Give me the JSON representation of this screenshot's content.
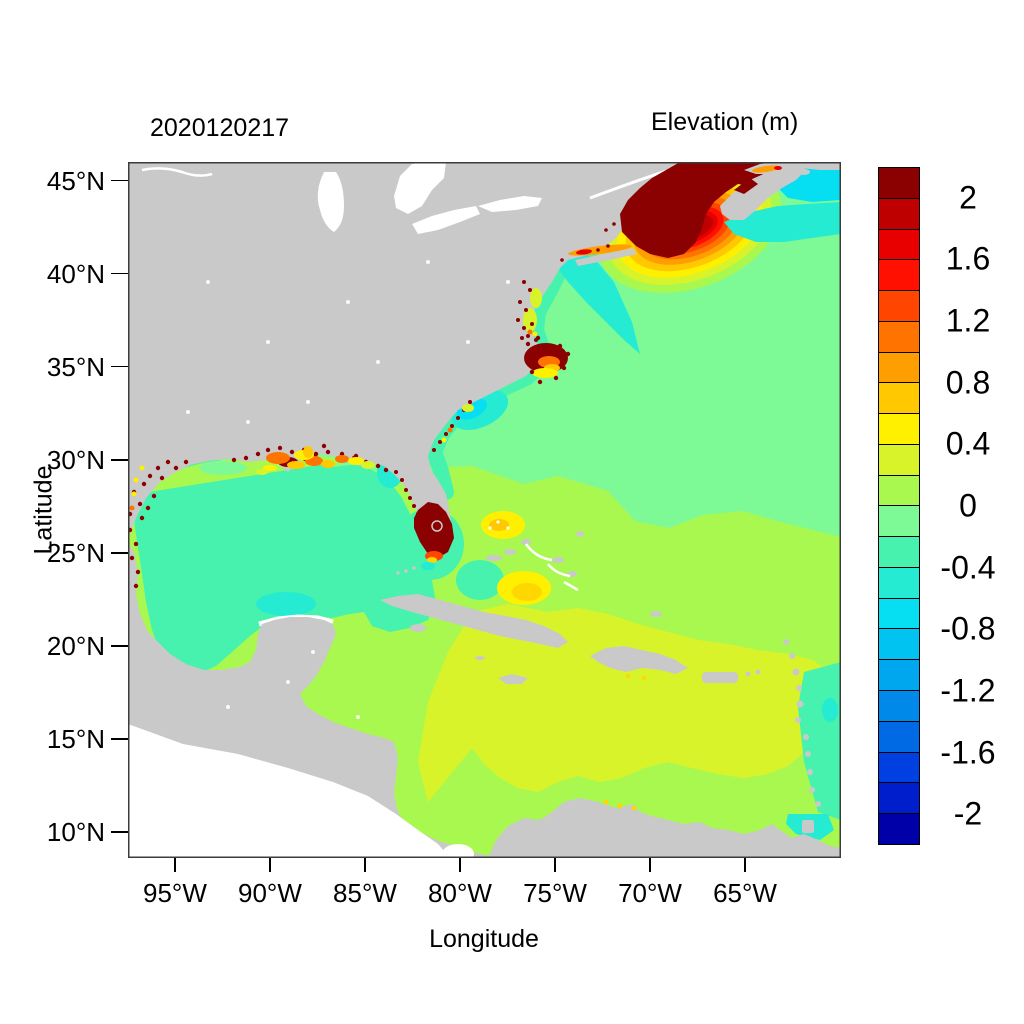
{
  "titles": {
    "plot_label": "2020120217",
    "colorbar_title": "Elevation (m)"
  },
  "axes": {
    "x": {
      "label": "Longitude",
      "ticks": [
        {
          "label": "95°W",
          "value": 95
        },
        {
          "label": "90°W",
          "value": 90
        },
        {
          "label": "85°W",
          "value": 85
        },
        {
          "label": "80°W",
          "value": 80
        },
        {
          "label": "75°W",
          "value": 75
        },
        {
          "label": "70°W",
          "value": 70
        },
        {
          "label": "65°W",
          "value": 65
        }
      ]
    },
    "y": {
      "label": "Latitude",
      "ticks": [
        {
          "label": "45°N",
          "value": 45
        },
        {
          "label": "40°N",
          "value": 40
        },
        {
          "label": "35°N",
          "value": 35
        },
        {
          "label": "30°N",
          "value": 30
        },
        {
          "label": "25°N",
          "value": 25
        },
        {
          "label": "20°N",
          "value": 20
        },
        {
          "label": "15°N",
          "value": 15
        },
        {
          "label": "10°N",
          "value": 10
        }
      ]
    }
  },
  "colorbar": {
    "title": "Elevation (m)",
    "max": 2.2,
    "min": -2.2,
    "step": 0.2,
    "tick_labels": [
      {
        "label": "2",
        "value": 2
      },
      {
        "label": "1.6",
        "value": 1.6
      },
      {
        "label": "1.2",
        "value": 1.2
      },
      {
        "label": "0.8",
        "value": 0.8
      },
      {
        "label": "0.4",
        "value": 0.4
      },
      {
        "label": "0",
        "value": 0
      },
      {
        "label": "-0.4",
        "value": -0.4
      },
      {
        "label": "-0.8",
        "value": -0.8
      },
      {
        "label": "-1.2",
        "value": -1.2
      },
      {
        "label": "-1.6",
        "value": -1.6
      },
      {
        "label": "-2",
        "value": -2
      }
    ],
    "colors_top_to_bottom": [
      "#8B0000",
      "#BE0000",
      "#E80000",
      "#FF1000",
      "#FF4500",
      "#FF7300",
      "#FF9E00",
      "#FFC800",
      "#FFF000",
      "#D9F32B",
      "#A9F84F",
      "#7DFA96",
      "#46F2AE",
      "#25EBD2",
      "#06DFF2",
      "#00C3F2",
      "#00A6EE",
      "#0089E9",
      "#006AE4",
      "#0040E0",
      "#001ECC",
      "#0000A8"
    ]
  },
  "palette": {
    "maroon": "#8B0000",
    "red2": "#BE0000",
    "red3": "#E80000",
    "red4": "#FF1000",
    "orangered": "#FF4500",
    "orange": "#FF7300",
    "orange2": "#FF9E00",
    "amber": "#FFC800",
    "yellow": "#FFF000",
    "gold": "#FFD700",
    "yg": "#D9F32B",
    "lyg": "#A9F84F",
    "mint": "#7DFA96",
    "spring": "#46F2AE",
    "teal": "#25EBD2",
    "cyan": "#06DFF2",
    "land": "#C9C9C9",
    "outside": "#FFFFFF",
    "border": "#3C3C3C"
  },
  "chart_data": {
    "type": "heatmap",
    "title": "Elevation (m)",
    "date_label": "2020120217",
    "xlabel": "Longitude",
    "ylabel": "Latitude",
    "x_domain_degW": [
      97.47,
      59.95
    ],
    "y_domain_degN": [
      46.0,
      8.6
    ],
    "grid": false,
    "legend_position": "right-colorbar",
    "levels": {
      "min": -2.2,
      "max": 2.2,
      "step": 0.2
    },
    "regions": [
      {
        "area": "Gulf of Maine / Bay of Fundy hotspot",
        "elevation_m": "> 2.2",
        "color": "#8B0000"
      },
      {
        "area": "Radial ring gradient SE of Gulf of Maine",
        "elevation_m": "2.2 down to 0.2",
        "color": "#FF9E00"
      },
      {
        "area": "Open Atlantic north of ~27N",
        "elevation_m": "-0.2 to 0",
        "color": "#7DFA96"
      },
      {
        "area": "Atlantic south of ~27N and Bahamas waters",
        "elevation_m": "0 to 0.2",
        "color": "#A9F84F"
      },
      {
        "area": "Caribbean Sea (central and east)",
        "elevation_m": "0.2 to 0.4",
        "color": "#D9F32B"
      },
      {
        "area": "Gulf of Mexico basin",
        "elevation_m": "-0.4 to -0.2",
        "color": "#46F2AE"
      },
      {
        "area": "Scotian Shelf / NE corner band",
        "elevation_m": "-0.8 to -0.4",
        "color": "#06DFF2"
      },
      {
        "area": "US SE and mid-Atlantic coastal band",
        "elevation_m": "-0.8 to -0.2",
        "color": "#25EBD2"
      },
      {
        "area": "South Florida interior (flooded)",
        "elevation_m": "> 2.2",
        "color": "#8B0000"
      },
      {
        "area": "Bahama Banks patches",
        "elevation_m": "0.4 to 0.8",
        "color": "#FFF000"
      },
      {
        "area": "Louisiana-Texas coastal marshes (speckled)",
        "elevation_m": "0.6 to > 2.2",
        "color": "#FF7300"
      },
      {
        "area": "Chesapeake / Pamlico estuaries (speckled)",
        "elevation_m": "0.8 to > 2.2",
        "color": "#8B0000"
      },
      {
        "area": "Long Island Sound",
        "elevation_m": "0.8 to 1.6",
        "color": "#FF9E00"
      },
      {
        "area": "Land",
        "elevation_m": "no data",
        "color": "#C9C9C9"
      },
      {
        "area": "Outside model domain (Pacific corner, Great Lakes)",
        "elevation_m": "no data",
        "color": "#FFFFFF"
      }
    ]
  }
}
